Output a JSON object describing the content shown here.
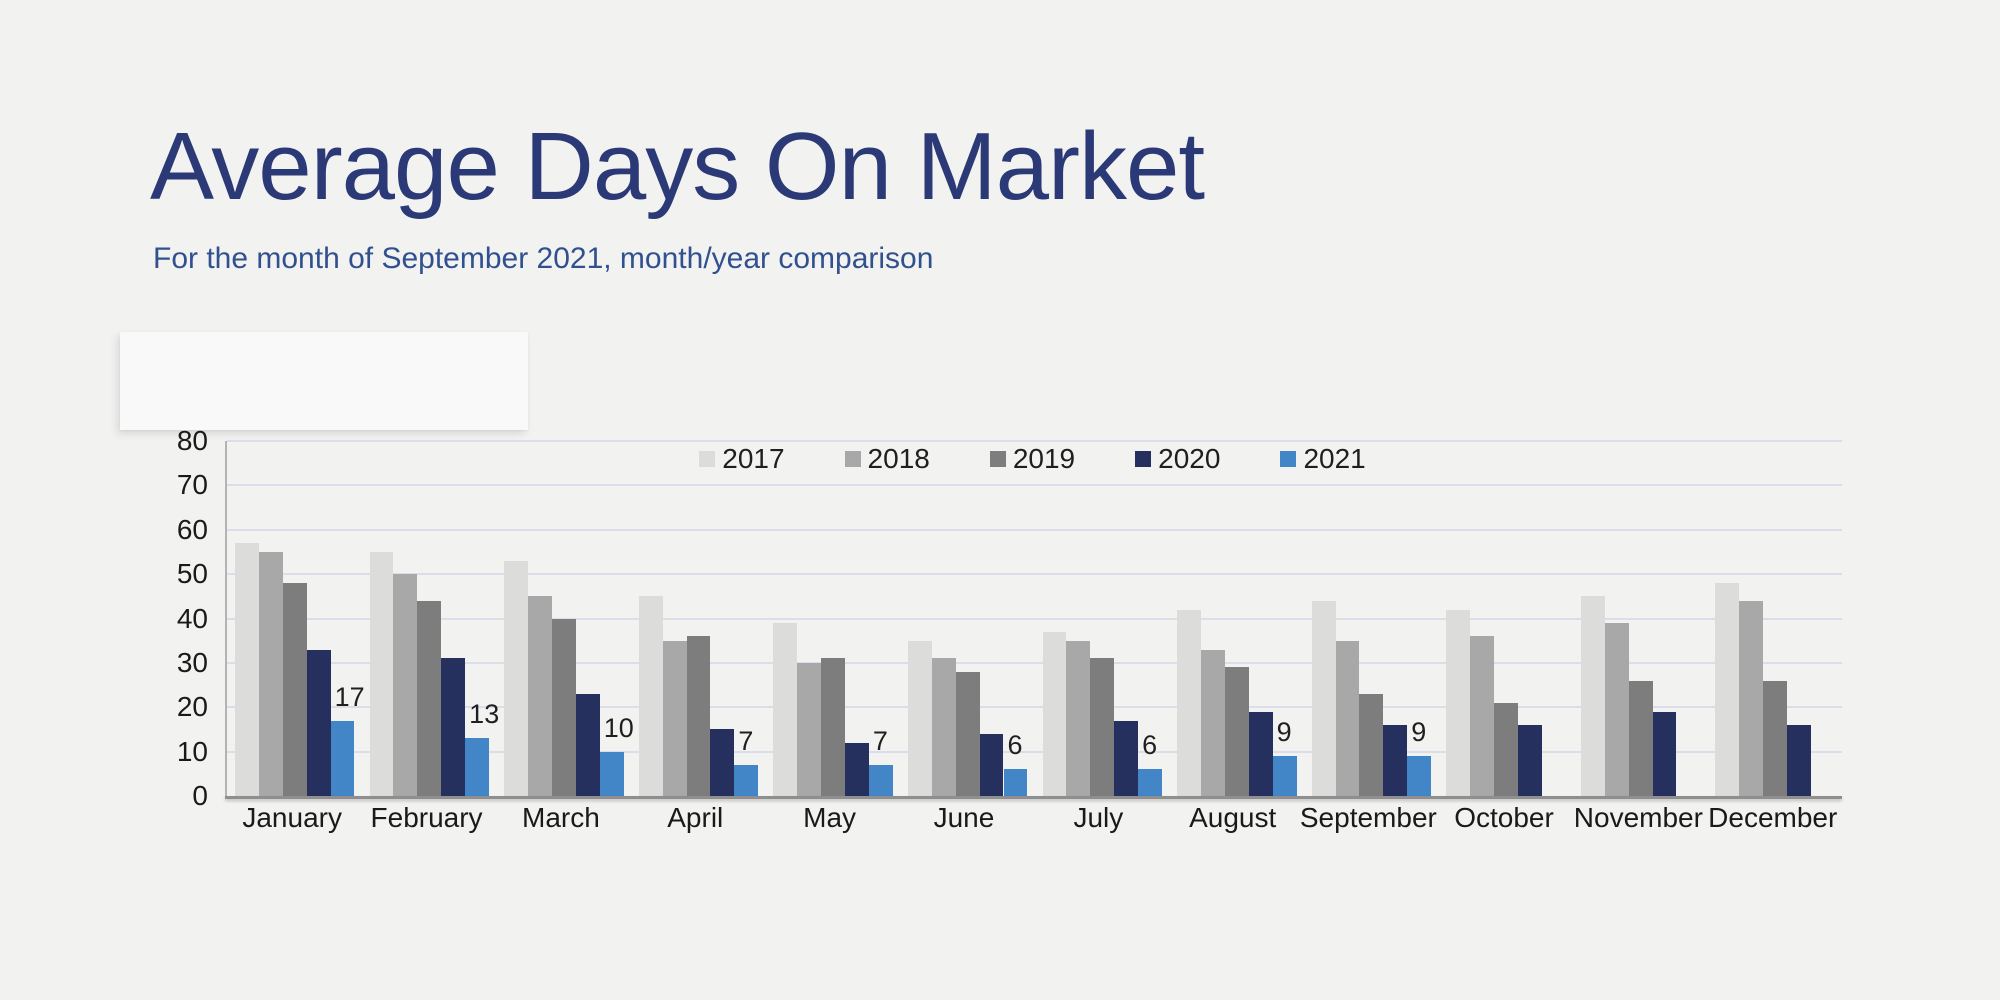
{
  "page": {
    "background": "#f2f2f1"
  },
  "header": {
    "title": "Average Days On Market",
    "subtitle": "For the month of September 2021, month/year comparison",
    "title_color": "#2b3976",
    "subtitle_color": "#31508f"
  },
  "chart_data": {
    "type": "bar",
    "title": "Average Days On Market",
    "subtitle": "For the month of September 2021, month/year comparison",
    "categories": [
      "January",
      "February",
      "March",
      "April",
      "May",
      "June",
      "July",
      "August",
      "September",
      "October",
      "November",
      "December"
    ],
    "series": [
      {
        "name": "2017",
        "color": "#dcdcdb",
        "values": [
          57,
          55,
          53,
          45,
          39,
          35,
          37,
          42,
          44,
          42,
          45,
          48
        ]
      },
      {
        "name": "2018",
        "color": "#a8a8a8",
        "values": [
          55,
          50,
          45,
          35,
          30,
          31,
          35,
          33,
          35,
          36,
          39,
          44
        ]
      },
      {
        "name": "2019",
        "color": "#7d7d7d",
        "values": [
          48,
          44,
          40,
          36,
          31,
          28,
          31,
          29,
          23,
          21,
          26,
          26
        ]
      },
      {
        "name": "2020",
        "color": "#25305f",
        "values": [
          33,
          31,
          23,
          15,
          12,
          14,
          17,
          19,
          16,
          16,
          19,
          16
        ]
      },
      {
        "name": "2021",
        "color": "#4286c8",
        "values": [
          17,
          13,
          10,
          7,
          7,
          6,
          6,
          9,
          9,
          null,
          null,
          null
        ]
      }
    ],
    "data_labels": {
      "series": "2021",
      "values": [
        "17",
        "13",
        "10",
        "7",
        "7",
        "6",
        "6",
        "9",
        "9",
        null,
        null,
        null
      ]
    },
    "ylim": [
      0,
      80
    ],
    "y_ticks": [
      "0",
      "10",
      "20",
      "30",
      "40",
      "50",
      "60",
      "70",
      "80"
    ],
    "grid": true,
    "legend_position": "top-center",
    "colors": {
      "gridline": "#d9deea",
      "axis": "#8f8f8f",
      "tick_text": "#1a1a1a",
      "data_label_text": "#1f1f1f"
    }
  }
}
